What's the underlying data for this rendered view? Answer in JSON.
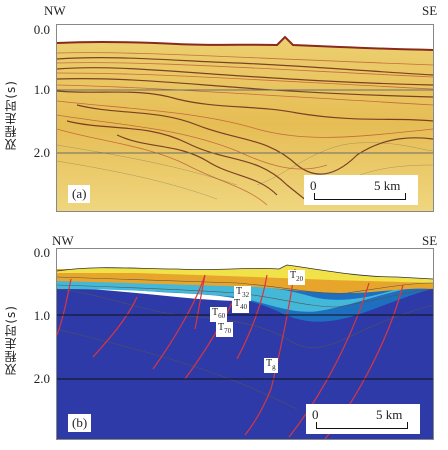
{
  "panel_a": {
    "left_label": "NW",
    "right_label": "SE",
    "y_ticks": [
      "0.0",
      "1.0",
      "2.0"
    ],
    "y_axis_title": "双程走时(s)",
    "panel_tag": "(a)",
    "scale": {
      "start": "0",
      "end": "5 km"
    }
  },
  "panel_b": {
    "left_label": "NW",
    "right_label": "SE",
    "y_ticks": [
      "0.0",
      "1.0",
      "2.0"
    ],
    "y_axis_title": "双程走时(s)",
    "panel_tag": "(b)",
    "scale": {
      "start": "0",
      "end": "5 km"
    },
    "horizons": [
      {
        "main": "T",
        "sub": "20"
      },
      {
        "main": "T",
        "sub": "32"
      },
      {
        "main": "T",
        "sub": "40"
      },
      {
        "main": "T",
        "sub": "60"
      },
      {
        "main": "T",
        "sub": "70"
      },
      {
        "main": "T",
        "sub": "g"
      }
    ]
  },
  "colors": {
    "seismic_bg": "#e9c35a",
    "layer_top": "#f2e24a",
    "layer_orange": "#e8a52c",
    "layer_cyan": "#43b8d8",
    "layer_blue": "#1f6fc0",
    "basement": "#2d3aa8",
    "fault": "#d8363f"
  }
}
